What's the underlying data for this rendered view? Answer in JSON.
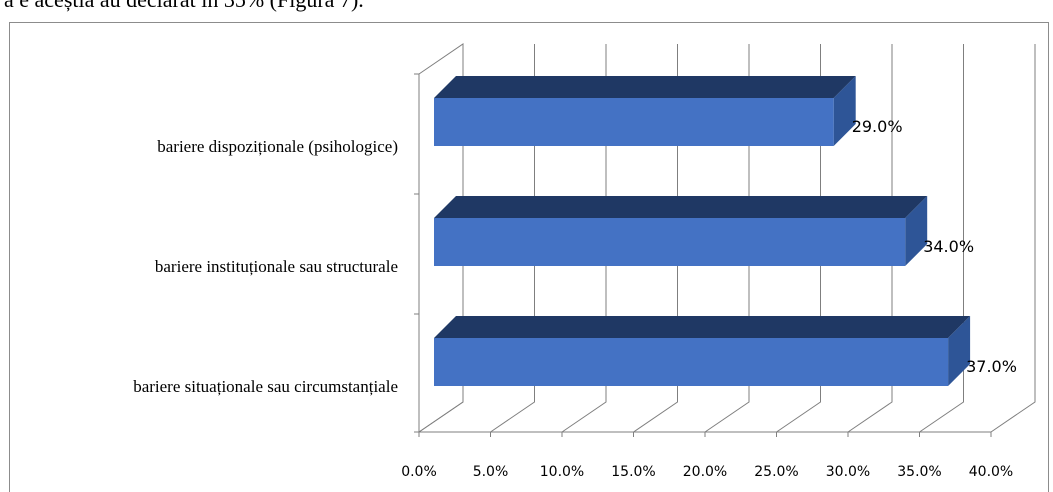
{
  "document": {
    "top_text": "a    e aceștia au declarat în 35% (Figura 7)."
  },
  "colors": {
    "bar_front": "#4472c4",
    "bar_top": "#1f3864",
    "bar_side": "#2e5597",
    "grid": "#7f7f7f"
  },
  "chart_data": {
    "type": "bar",
    "orientation": "horizontal",
    "three_d": true,
    "categories": [
      "bariere dispoziționale (psihologice)",
      "bariere instituționale sau structurale",
      "bariere situaționale sau circumstanțiale"
    ],
    "values": [
      29.0,
      34.0,
      37.0
    ],
    "data_labels": [
      "29.0%",
      "34.0%",
      "37.0%"
    ],
    "x_ticks": [
      "0.0%",
      "5.0%",
      "10.0%",
      "15.0%",
      "20.0%",
      "25.0%",
      "30.0%",
      "35.0%",
      "40.0%"
    ],
    "xlim": [
      0,
      40
    ],
    "grid": true,
    "title": "",
    "xlabel": "",
    "ylabel": ""
  }
}
